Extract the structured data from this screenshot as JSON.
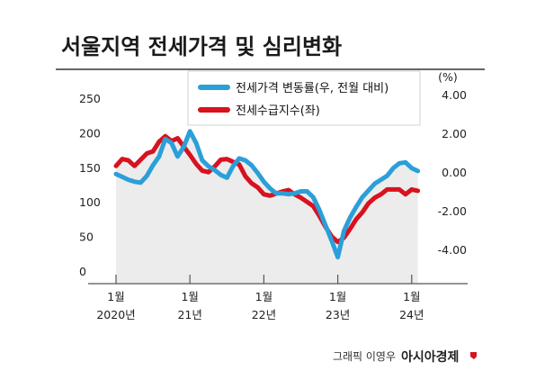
{
  "title": "서울지역 전세가격 및 심리변화",
  "credit": "그래픽 이영우",
  "brand": "아시아경제",
  "colors": {
    "price_change": "#2b9fd8",
    "supply_demand": "#d8121e",
    "area_fill": "#ececec",
    "title_rule": "#333333"
  },
  "chart_data": {
    "type": "line",
    "x_ticks": [
      {
        "month": "1월",
        "year": "2020년",
        "index": 0
      },
      {
        "month": "1월",
        "year": "21년",
        "index": 12
      },
      {
        "month": "1월",
        "year": "22년",
        "index": 24
      },
      {
        "month": "1월",
        "year": "23년",
        "index": 36
      },
      {
        "month": "1월",
        "year": "24년",
        "index": 48
      }
    ],
    "left_axis": {
      "ticks": [
        "250",
        "200",
        "150",
        "100",
        "50",
        "0"
      ],
      "range": [
        0,
        250
      ]
    },
    "right_axis": {
      "unit": "(%)",
      "ticks": [
        "4.00",
        "2.00",
        "0.00",
        "-2.00",
        "-4.00"
      ],
      "range": [
        -4.6,
        4.6
      ]
    },
    "series": [
      {
        "name": "전세가격 변동률(우, 전월 대비)",
        "axis": "right",
        "color": "#2b9fd8",
        "values": [
          -0.1,
          -0.25,
          -0.4,
          -0.5,
          -0.55,
          -0.2,
          0.35,
          0.8,
          1.7,
          1.5,
          0.8,
          1.3,
          2.1,
          1.5,
          0.6,
          0.3,
          0.1,
          -0.15,
          -0.3,
          0.3,
          0.7,
          0.6,
          0.35,
          -0.05,
          -0.5,
          -0.85,
          -1.1,
          -1.1,
          -1.15,
          -1.1,
          -1.0,
          -1.0,
          -1.3,
          -1.95,
          -2.75,
          -3.55,
          -4.4,
          -3.05,
          -2.35,
          -1.8,
          -1.3,
          -0.95,
          -0.6,
          -0.4,
          -0.2,
          0.2,
          0.45,
          0.5,
          0.2,
          0.05
        ]
      },
      {
        "name": "전세수급지수(좌)",
        "axis": "left",
        "color": "#d8121e",
        "values": [
          152,
          162,
          160,
          152,
          161,
          170,
          173,
          187,
          195,
          188,
          192,
          180,
          168,
          155,
          145,
          143,
          151,
          161,
          162,
          158,
          154,
          137,
          127,
          121,
          111,
          109,
          112,
          115,
          117,
          111,
          106,
          100,
          94,
          80,
          64,
          50,
          42,
          48,
          61,
          75,
          85,
          98,
          106,
          111,
          118,
          118,
          118,
          111,
          118,
          116
        ]
      }
    ]
  }
}
